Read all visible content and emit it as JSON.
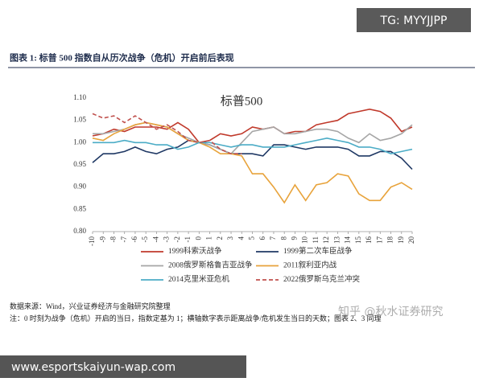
{
  "chart_data": {
    "type": "line",
    "figure_title": "图表 1:   标普 500 指数自从历次战争（危机）开启前后表现",
    "title": "标普500",
    "x": [
      -10,
      -9,
      -8,
      -7,
      -6,
      -5,
      -4,
      -3,
      -2,
      -1,
      0,
      1,
      2,
      3,
      4,
      5,
      6,
      7,
      8,
      9,
      10,
      11,
      12,
      13,
      14,
      15,
      16,
      17,
      18,
      19,
      20
    ],
    "xlim": [
      -10,
      20
    ],
    "ylim": [
      0.8,
      1.1
    ],
    "yticks": [
      {
        "value": 0.8,
        "label": "0.80"
      },
      {
        "value": 0.85,
        "label": "0.85"
      },
      {
        "value": 0.9,
        "label": "0.90"
      },
      {
        "value": 0.95,
        "label": "0.95"
      },
      {
        "value": 1.0,
        "label": "1.00"
      },
      {
        "value": 1.05,
        "label": "1.05"
      },
      {
        "value": 1.1,
        "label": "1.10"
      }
    ],
    "grid": false,
    "series": [
      {
        "name": "1999科索沃战争",
        "color": "#c0392b",
        "dash": false,
        "values": [
          1.015,
          1.02,
          1.03,
          1.025,
          1.035,
          1.035,
          1.035,
          1.03,
          1.045,
          1.03,
          1.0,
          1.005,
          1.02,
          1.015,
          1.02,
          1.035,
          1.03,
          1.035,
          1.02,
          1.025,
          1.025,
          1.04,
          1.045,
          1.05,
          1.065,
          1.07,
          1.075,
          1.07,
          1.055,
          1.025,
          1.035
        ]
      },
      {
        "name": "1999第二次车臣战争",
        "color": "#1f3864",
        "dash": false,
        "values": [
          0.955,
          0.975,
          0.975,
          0.98,
          0.99,
          0.98,
          0.975,
          0.985,
          0.99,
          1.005,
          1.0,
          0.995,
          0.985,
          0.975,
          0.975,
          0.975,
          0.97,
          0.995,
          0.995,
          0.99,
          0.985,
          0.99,
          0.99,
          0.99,
          0.985,
          0.97,
          0.97,
          0.98,
          0.98,
          0.965,
          0.94
        ]
      },
      {
        "name": "2008俄罗斯格鲁吉亚战争",
        "color": "#a6a6a6",
        "dash": false,
        "values": [
          1.02,
          1.02,
          1.025,
          1.03,
          1.04,
          1.045,
          1.04,
          1.035,
          1.02,
          1.01,
          1.0,
          0.995,
          0.985,
          0.975,
          1.0,
          1.025,
          1.03,
          1.035,
          1.02,
          1.02,
          1.025,
          1.03,
          1.03,
          1.025,
          1.01,
          1.0,
          1.02,
          1.005,
          1.01,
          1.02,
          1.04
        ]
      },
      {
        "name": "2011叙利亚内战",
        "color": "#e8a33b",
        "dash": false,
        "values": [
          1.01,
          1.005,
          1.02,
          1.03,
          1.04,
          1.045,
          1.04,
          1.035,
          1.02,
          1.005,
          1.0,
          0.99,
          0.975,
          0.975,
          0.97,
          0.93,
          0.93,
          0.9,
          0.865,
          0.905,
          0.87,
          0.905,
          0.91,
          0.93,
          0.925,
          0.885,
          0.87,
          0.87,
          0.9,
          0.91,
          0.895
        ]
      },
      {
        "name": "2014克里米亚危机",
        "color": "#4bacc6",
        "dash": false,
        "values": [
          1.0,
          1.0,
          1.0,
          1.005,
          1.0,
          1.0,
          0.995,
          0.995,
          0.985,
          0.99,
          1.0,
          1.0,
          0.995,
          0.99,
          0.995,
          0.995,
          0.99,
          0.99,
          0.99,
          0.995,
          1.0,
          1.005,
          1.01,
          1.005,
          1.0,
          0.99,
          0.99,
          0.985,
          0.975,
          0.98,
          0.985
        ]
      },
      {
        "name": "2022俄罗斯乌克兰冲突",
        "color": "#c0504d",
        "dash": true,
        "values": [
          1.065,
          1.055,
          1.06,
          1.045,
          1.06,
          1.045,
          1.03,
          1.04,
          1.025,
          1.005,
          1.0,
          1.005,
          0.985,
          0.975,
          0.975,
          null,
          null,
          null,
          null,
          null,
          null,
          null,
          null,
          null,
          null,
          null,
          null,
          null,
          null,
          null,
          null
        ]
      }
    ],
    "source": "数据来源：Wind，兴业证券经济与金融研究院整理",
    "note": "注：0 时刻为战争（危机）开启的当日，指数定基为 1；横轴数字表示距离战争/危机发生当日的天数；图表 2、3 同理"
  },
  "watermarks": {
    "top": "TG: MYYJJPP",
    "middle": "知乎 @秋水证券研究",
    "bottom": "www.esportskaiyun-wap.com"
  }
}
